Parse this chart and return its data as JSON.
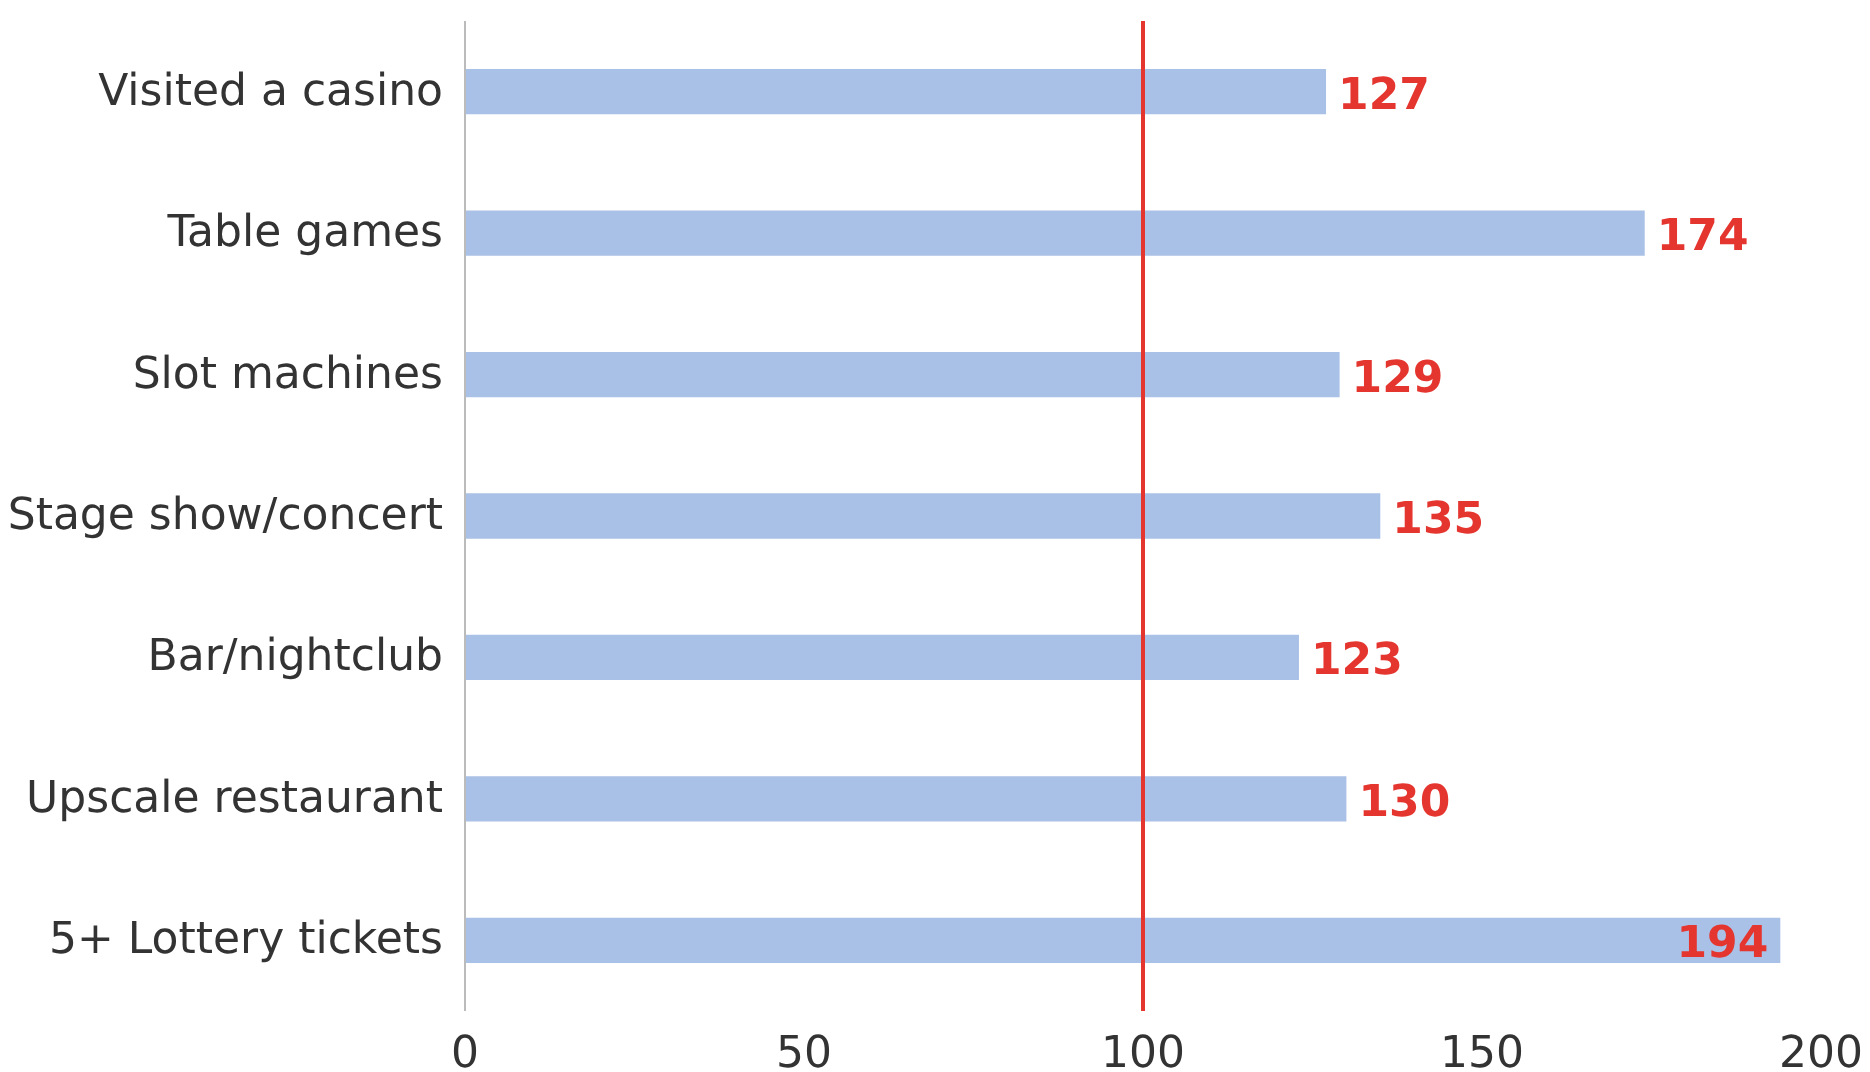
{
  "chart_data": {
    "type": "bar",
    "orientation": "horizontal",
    "categories": [
      "Visited a casino",
      "Table games",
      "Slot machines",
      "Stage show/concert",
      "Bar/nightclub",
      "Upscale restaurant",
      "5+ Lottery tickets"
    ],
    "values": [
      127,
      174,
      129,
      135,
      123,
      130,
      194
    ],
    "color": "#a9c1e6",
    "xlim": [
      0,
      200
    ],
    "xticks": [
      0,
      50,
      100,
      150,
      200
    ],
    "data_labels": true,
    "ref_lines": [
      {
        "axis": "x",
        "value": 100,
        "color": "#e5352f"
      }
    ],
    "grid": false
  }
}
